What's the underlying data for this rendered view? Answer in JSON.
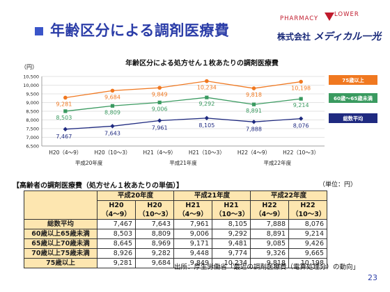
{
  "header": {
    "title": "年齢区分による調剤医療費",
    "logo_pharmacy": "PHARMACY",
    "logo_lower": "LOWER",
    "company_prefix": "株式会社",
    "company_brand": "メディカル一光",
    "accent_color": "#2b3da8",
    "brand_color": "#c01a2c"
  },
  "chart_data": {
    "type": "line",
    "title": "年齢区分による処方せん１枚あたりの調剤医療費",
    "yunit": "（円）",
    "ylim": [
      6500,
      10500
    ],
    "yticks": [
      6500,
      7000,
      7500,
      8000,
      8500,
      9000,
      9500,
      10000,
      10500
    ],
    "ytick_labels": [
      "6,500",
      "7,000",
      "7,500",
      "8,000",
      "8,500",
      "9,000",
      "9,500",
      "10,000",
      "10,500"
    ],
    "grid": true,
    "categories": [
      "H20（4〜9）",
      "H20（10〜3）",
      "H21（4〜9）",
      "H21（10〜3）",
      "H22（4〜9）",
      "H22（10〜3）"
    ],
    "year_groups": [
      "平成20年度",
      "平成21年度",
      "平成22年度"
    ],
    "series": [
      {
        "name": "75歳以上",
        "color": "#f07820",
        "marker": "circle",
        "values": [
          9281,
          9684,
          9849,
          10234,
          9818,
          10198
        ],
        "value_labels": [
          "9,281",
          "9,684",
          "9,849",
          "10,234",
          "9,818",
          "10,198"
        ]
      },
      {
        "name": "60歳～65歳未満",
        "color": "#3a9a60",
        "marker": "square",
        "values": [
          8503,
          8809,
          9006,
          9292,
          8891,
          9214
        ],
        "value_labels": [
          "8,503",
          "8,809",
          "9,006",
          "9,292",
          "8,891",
          "9,214"
        ]
      },
      {
        "name": "総数平均",
        "color": "#1f2a80",
        "marker": "diamond",
        "values": [
          7467,
          7643,
          7961,
          8105,
          7888,
          8076
        ],
        "value_labels": [
          "7,467",
          "7,643",
          "7,961",
          "8,105",
          "7,888",
          "8,076"
        ]
      }
    ],
    "legend_placement": "right"
  },
  "table": {
    "heading": "【高齢者の調剤医療費（処方せん１枚あたりの単価）】",
    "unit": "（単位：円）",
    "year_headers": [
      "平成20年度",
      "平成21年度",
      "平成22年度"
    ],
    "period_headers": [
      "H20（4〜9）",
      "H20（10〜3）",
      "H21（4〜9）",
      "H21（10〜3）",
      "H22（4〜9）",
      "H22（10〜3）"
    ],
    "rows": [
      {
        "label": "総数平均",
        "values": [
          "7,467",
          "7,643",
          "7,961",
          "8,105",
          "7,888",
          "8,076"
        ]
      },
      {
        "label": "60歳以上65歳未満",
        "values": [
          "8,503",
          "8,809",
          "9,006",
          "9,292",
          "8,891",
          "9,214"
        ]
      },
      {
        "label": "65歳以上70歳未満",
        "values": [
          "8,645",
          "8,969",
          "9,171",
          "9,481",
          "9,085",
          "9,426"
        ]
      },
      {
        "label": "70歳以上75歳未満",
        "values": [
          "8,926",
          "9,282",
          "9,448",
          "9,774",
          "9,326",
          "9,665"
        ]
      },
      {
        "label": "75歳以上",
        "values": [
          "9,281",
          "9,684",
          "9,849",
          "10,234",
          "9,818",
          "10,198"
        ]
      }
    ],
    "header_bg": "#fde6b0"
  },
  "footer": {
    "source": "出所：厚生労働省「最近の調剤医療費（電算処理分）の動向」",
    "page_number": "23"
  }
}
